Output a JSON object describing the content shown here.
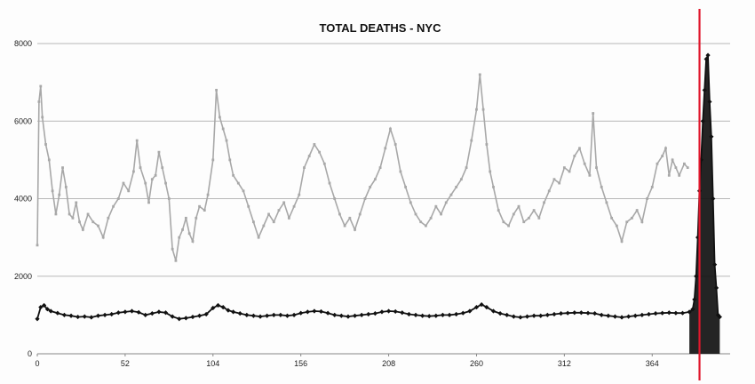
{
  "chart_data": {
    "type": "line",
    "title": "TOTAL DEATHS - NYC",
    "xlabel": "",
    "ylabel": "",
    "xlim": [
      0,
      400
    ],
    "ylim": [
      0,
      8000
    ],
    "y_ticks": [
      0,
      2000,
      4000,
      6000,
      8000
    ],
    "x_ticks": [
      0,
      52,
      104,
      156,
      208,
      260,
      312,
      364
    ],
    "grid": "horizontal",
    "legend": "none",
    "annotation": {
      "type": "vertical-line",
      "x": 392,
      "color": "#e0182d"
    },
    "series": [
      {
        "color": "#a8a8a8",
        "marker": "square",
        "points": [
          [
            0,
            2800
          ],
          [
            1,
            6500
          ],
          [
            2,
            6900
          ],
          [
            3,
            6100
          ],
          [
            5,
            5400
          ],
          [
            7,
            5000
          ],
          [
            9,
            4200
          ],
          [
            11,
            3600
          ],
          [
            13,
            4100
          ],
          [
            15,
            4800
          ],
          [
            17,
            4300
          ],
          [
            19,
            3600
          ],
          [
            21,
            3500
          ],
          [
            23,
            3900
          ],
          [
            25,
            3400
          ],
          [
            27,
            3200
          ],
          [
            30,
            3600
          ],
          [
            33,
            3400
          ],
          [
            36,
            3300
          ],
          [
            39,
            3000
          ],
          [
            42,
            3500
          ],
          [
            45,
            3800
          ],
          [
            48,
            4000
          ],
          [
            51,
            4400
          ],
          [
            54,
            4200
          ],
          [
            57,
            4700
          ],
          [
            59,
            5500
          ],
          [
            61,
            4800
          ],
          [
            64,
            4400
          ],
          [
            66,
            3900
          ],
          [
            68,
            4500
          ],
          [
            70,
            4600
          ],
          [
            72,
            5200
          ],
          [
            74,
            4800
          ],
          [
            76,
            4400
          ],
          [
            78,
            4000
          ],
          [
            80,
            2700
          ],
          [
            82,
            2400
          ],
          [
            84,
            3000
          ],
          [
            86,
            3200
          ],
          [
            88,
            3500
          ],
          [
            90,
            3100
          ],
          [
            92,
            2900
          ],
          [
            94,
            3500
          ],
          [
            96,
            3800
          ],
          [
            99,
            3700
          ],
          [
            101,
            4100
          ],
          [
            104,
            5000
          ],
          [
            106,
            6800
          ],
          [
            108,
            6100
          ],
          [
            110,
            5800
          ],
          [
            112,
            5500
          ],
          [
            114,
            5000
          ],
          [
            116,
            4600
          ],
          [
            119,
            4400
          ],
          [
            122,
            4200
          ],
          [
            125,
            3800
          ],
          [
            128,
            3400
          ],
          [
            131,
            3000
          ],
          [
            134,
            3300
          ],
          [
            137,
            3600
          ],
          [
            140,
            3400
          ],
          [
            143,
            3700
          ],
          [
            146,
            3900
          ],
          [
            149,
            3500
          ],
          [
            152,
            3800
          ],
          [
            155,
            4100
          ],
          [
            158,
            4800
          ],
          [
            161,
            5100
          ],
          [
            164,
            5400
          ],
          [
            167,
            5200
          ],
          [
            170,
            4900
          ],
          [
            173,
            4400
          ],
          [
            176,
            4000
          ],
          [
            179,
            3600
          ],
          [
            182,
            3300
          ],
          [
            185,
            3500
          ],
          [
            188,
            3200
          ],
          [
            191,
            3600
          ],
          [
            194,
            4000
          ],
          [
            197,
            4300
          ],
          [
            200,
            4500
          ],
          [
            203,
            4800
          ],
          [
            206,
            5300
          ],
          [
            209,
            5800
          ],
          [
            212,
            5400
          ],
          [
            215,
            4700
          ],
          [
            218,
            4300
          ],
          [
            221,
            3900
          ],
          [
            224,
            3600
          ],
          [
            227,
            3400
          ],
          [
            230,
            3300
          ],
          [
            233,
            3500
          ],
          [
            236,
            3800
          ],
          [
            239,
            3600
          ],
          [
            242,
            3900
          ],
          [
            245,
            4100
          ],
          [
            248,
            4300
          ],
          [
            251,
            4500
          ],
          [
            254,
            4800
          ],
          [
            257,
            5500
          ],
          [
            260,
            6300
          ],
          [
            262,
            7200
          ],
          [
            264,
            6300
          ],
          [
            266,
            5400
          ],
          [
            268,
            4700
          ],
          [
            270,
            4300
          ],
          [
            273,
            3700
          ],
          [
            276,
            3400
          ],
          [
            279,
            3300
          ],
          [
            282,
            3600
          ],
          [
            285,
            3800
          ],
          [
            288,
            3400
          ],
          [
            291,
            3500
          ],
          [
            294,
            3700
          ],
          [
            297,
            3500
          ],
          [
            300,
            3900
          ],
          [
            303,
            4200
          ],
          [
            306,
            4500
          ],
          [
            309,
            4400
          ],
          [
            312,
            4800
          ],
          [
            315,
            4700
          ],
          [
            318,
            5100
          ],
          [
            321,
            5300
          ],
          [
            324,
            4900
          ],
          [
            327,
            4600
          ],
          [
            329,
            6200
          ],
          [
            331,
            4800
          ],
          [
            334,
            4300
          ],
          [
            337,
            3900
          ],
          [
            340,
            3500
          ],
          [
            343,
            3300
          ],
          [
            346,
            2900
          ],
          [
            349,
            3400
          ],
          [
            352,
            3500
          ],
          [
            355,
            3700
          ],
          [
            358,
            3400
          ],
          [
            361,
            4000
          ],
          [
            364,
            4300
          ],
          [
            367,
            4900
          ],
          [
            370,
            5100
          ],
          [
            372,
            5300
          ],
          [
            374,
            4600
          ],
          [
            376,
            5000
          ],
          [
            378,
            4800
          ],
          [
            380,
            4600
          ],
          [
            383,
            4900
          ],
          [
            385,
            4800
          ]
        ]
      },
      {
        "color": "#111111",
        "marker": "diamond",
        "points": [
          [
            0,
            900
          ],
          [
            2,
            1200
          ],
          [
            4,
            1250
          ],
          [
            6,
            1150
          ],
          [
            8,
            1100
          ],
          [
            12,
            1050
          ],
          [
            16,
            1000
          ],
          [
            20,
            980
          ],
          [
            24,
            950
          ],
          [
            28,
            960
          ],
          [
            32,
            940
          ],
          [
            36,
            980
          ],
          [
            40,
            1000
          ],
          [
            44,
            1020
          ],
          [
            48,
            1060
          ],
          [
            52,
            1080
          ],
          [
            56,
            1100
          ],
          [
            60,
            1070
          ],
          [
            64,
            1000
          ],
          [
            68,
            1040
          ],
          [
            72,
            1080
          ],
          [
            76,
            1060
          ],
          [
            80,
            960
          ],
          [
            84,
            900
          ],
          [
            88,
            920
          ],
          [
            92,
            950
          ],
          [
            96,
            980
          ],
          [
            100,
            1020
          ],
          [
            104,
            1180
          ],
          [
            107,
            1250
          ],
          [
            110,
            1200
          ],
          [
            113,
            1120
          ],
          [
            116,
            1080
          ],
          [
            120,
            1040
          ],
          [
            124,
            1000
          ],
          [
            128,
            980
          ],
          [
            132,
            960
          ],
          [
            136,
            980
          ],
          [
            140,
            1000
          ],
          [
            144,
            1000
          ],
          [
            148,
            980
          ],
          [
            152,
            1000
          ],
          [
            156,
            1050
          ],
          [
            160,
            1080
          ],
          [
            164,
            1100
          ],
          [
            168,
            1090
          ],
          [
            172,
            1050
          ],
          [
            176,
            1000
          ],
          [
            180,
            980
          ],
          [
            184,
            960
          ],
          [
            188,
            980
          ],
          [
            192,
            1000
          ],
          [
            196,
            1020
          ],
          [
            200,
            1040
          ],
          [
            204,
            1080
          ],
          [
            208,
            1100
          ],
          [
            212,
            1090
          ],
          [
            216,
            1060
          ],
          [
            220,
            1020
          ],
          [
            224,
            1000
          ],
          [
            228,
            980
          ],
          [
            232,
            970
          ],
          [
            236,
            980
          ],
          [
            240,
            1000
          ],
          [
            244,
            1000
          ],
          [
            248,
            1020
          ],
          [
            252,
            1050
          ],
          [
            256,
            1100
          ],
          [
            260,
            1200
          ],
          [
            263,
            1270
          ],
          [
            266,
            1200
          ],
          [
            270,
            1100
          ],
          [
            274,
            1040
          ],
          [
            278,
            1000
          ],
          [
            282,
            960
          ],
          [
            286,
            940
          ],
          [
            290,
            960
          ],
          [
            294,
            980
          ],
          [
            298,
            980
          ],
          [
            302,
            1000
          ],
          [
            306,
            1020
          ],
          [
            310,
            1040
          ],
          [
            314,
            1050
          ],
          [
            318,
            1060
          ],
          [
            322,
            1060
          ],
          [
            326,
            1050
          ],
          [
            330,
            1040
          ],
          [
            334,
            1000
          ],
          [
            338,
            980
          ],
          [
            342,
            960
          ],
          [
            346,
            940
          ],
          [
            350,
            960
          ],
          [
            354,
            980
          ],
          [
            358,
            1000
          ],
          [
            362,
            1020
          ],
          [
            366,
            1040
          ],
          [
            370,
            1050
          ],
          [
            374,
            1060
          ],
          [
            378,
            1050
          ],
          [
            382,
            1050
          ],
          [
            386,
            1080
          ],
          [
            388,
            1150
          ],
          [
            389,
            1400
          ],
          [
            390,
            2000
          ],
          [
            391,
            3000
          ],
          [
            392,
            4200
          ],
          [
            393,
            5000
          ],
          [
            394,
            6000
          ],
          [
            395,
            6800
          ],
          [
            396,
            7600
          ],
          [
            397,
            7700
          ],
          [
            398,
            6500
          ],
          [
            399,
            5600
          ],
          [
            400,
            4000
          ],
          [
            401,
            2300
          ],
          [
            402,
            1700
          ],
          [
            403,
            1000
          ],
          [
            404,
            950
          ]
        ]
      }
    ]
  }
}
